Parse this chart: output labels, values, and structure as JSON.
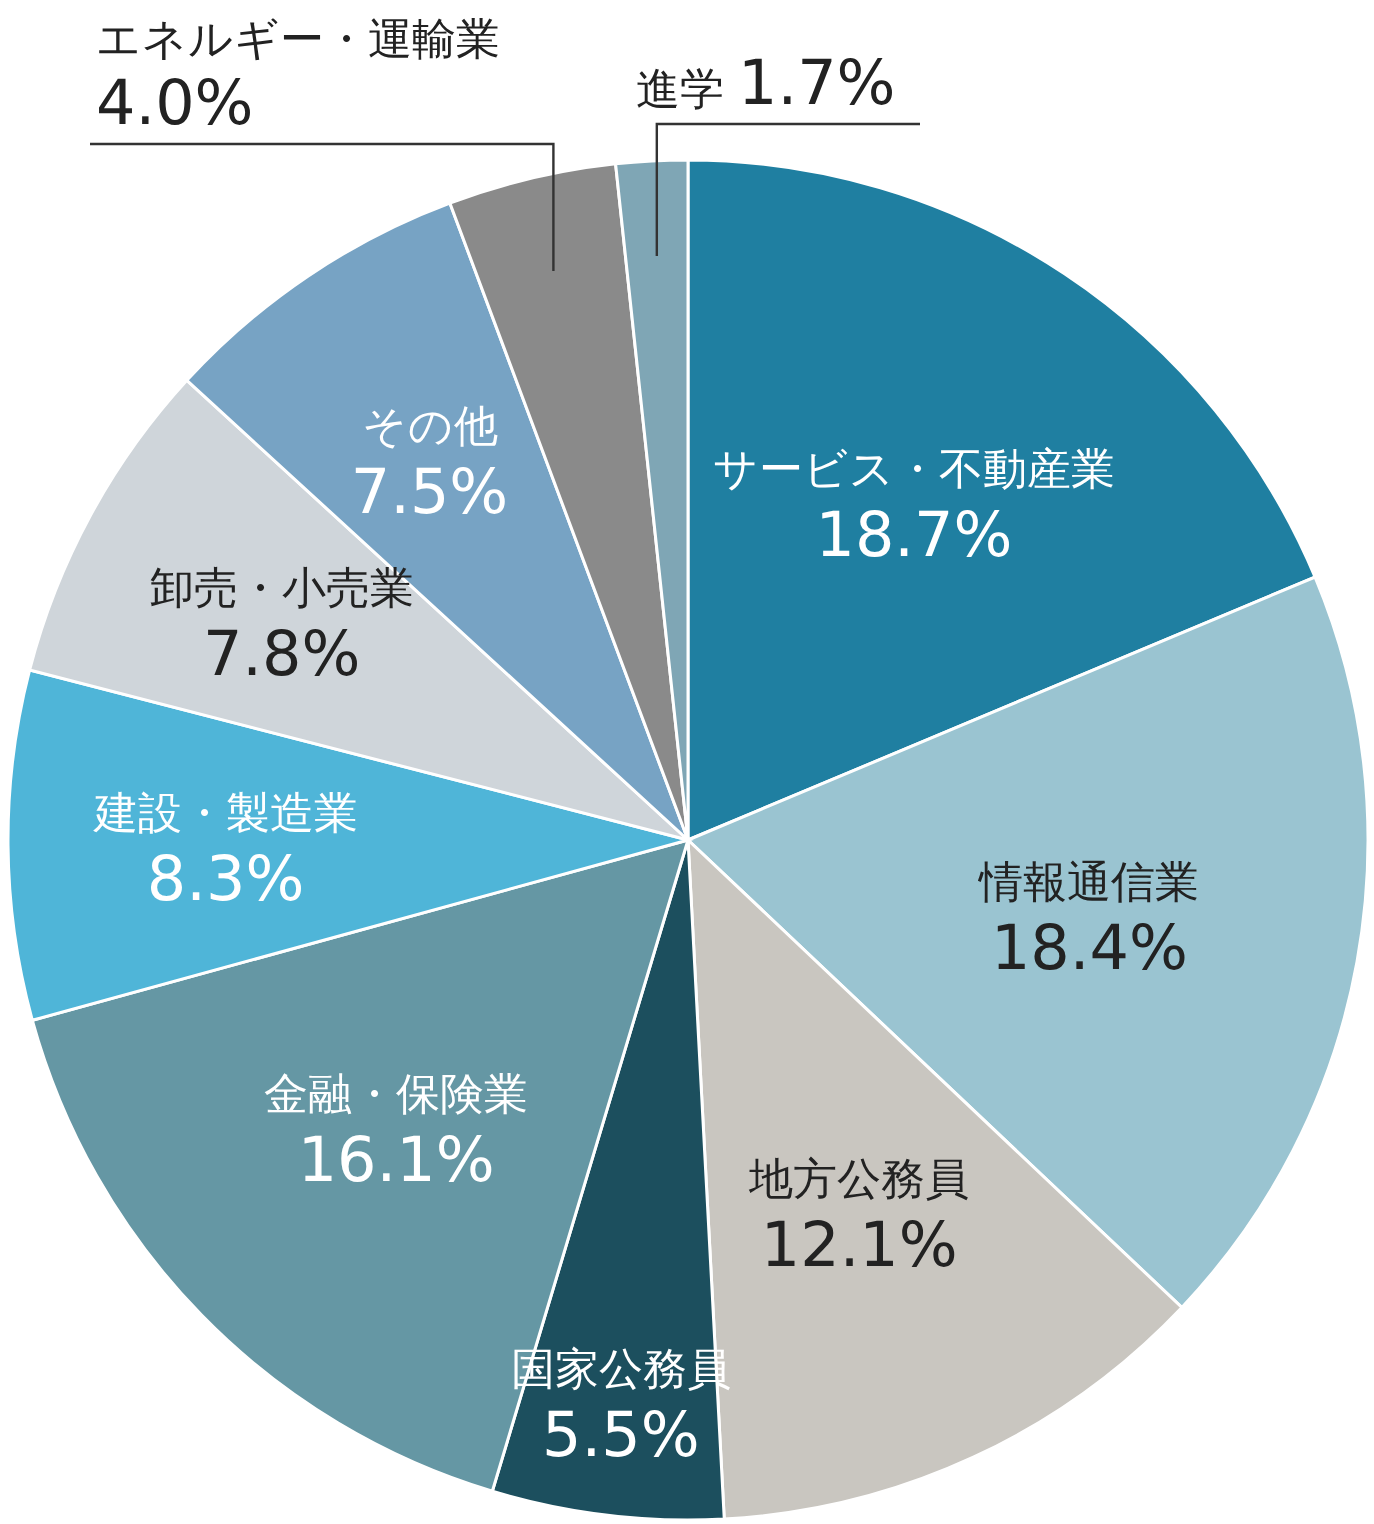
{
  "chart_data": {
    "type": "pie",
    "categories": [
      "サービス・不動産業",
      "情報通信業",
      "地方公務員",
      "国家公務員",
      "金融・保険業",
      "建設・製造業",
      "卸売・小売業",
      "その他",
      "エネルギー・運輸業",
      "進学"
    ],
    "values": [
      18.7,
      18.4,
      12.1,
      5.5,
      16.1,
      8.3,
      7.8,
      7.5,
      4.0,
      1.7
    ],
    "colors": [
      "#1f7fa1",
      "#9ac4d1",
      "#c9c6c0",
      "#1c4f5e",
      "#6597a4",
      "#4fb5d8",
      "#cfd5da",
      "#77a3c4",
      "#8a8a8a",
      "#7fa6b5"
    ],
    "value_labels": [
      "18.7%",
      "18.4%",
      "12.1%",
      "5.5%",
      "16.1%",
      "8.3%",
      "7.8%",
      "7.5%",
      "4.0%",
      "1.7%"
    ]
  }
}
